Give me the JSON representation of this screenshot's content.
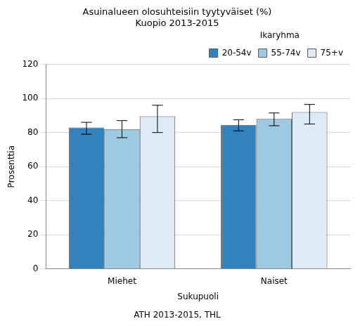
{
  "chart_data": {
    "type": "bar",
    "title": "Asuinalueen olosuhteisiin tyytyväiset (%)",
    "subtitle": "Kuopio 2013-2015",
    "source": "ATH 2013-2015, THL",
    "x_label": "Sukupuoli",
    "y_label": "Prosenttia",
    "legend_title": "Ikäryhmä",
    "legend": "upper right",
    "grid": true,
    "categories": [
      "Miehet",
      "Naiset"
    ],
    "series": [
      {
        "name": "20-54v",
        "color": "#3182bd",
        "values": [
          83,
          84.5
        ],
        "error": [
          [
            79,
            86
          ],
          [
            81,
            87.5
          ]
        ]
      },
      {
        "name": "55-74v",
        "color": "#9ecae1",
        "values": [
          82,
          88
        ],
        "error": [
          [
            77,
            87
          ],
          [
            84,
            91.5
          ]
        ]
      },
      {
        "name": "75+v",
        "color": "#deebf7",
        "values": [
          89.5,
          92
        ],
        "error": [
          [
            80,
            96
          ],
          [
            85,
            96.5
          ]
        ]
      }
    ],
    "ylim": [
      0,
      120
    ],
    "yticks": [
      0,
      20,
      40,
      60,
      80,
      100,
      120
    ]
  }
}
